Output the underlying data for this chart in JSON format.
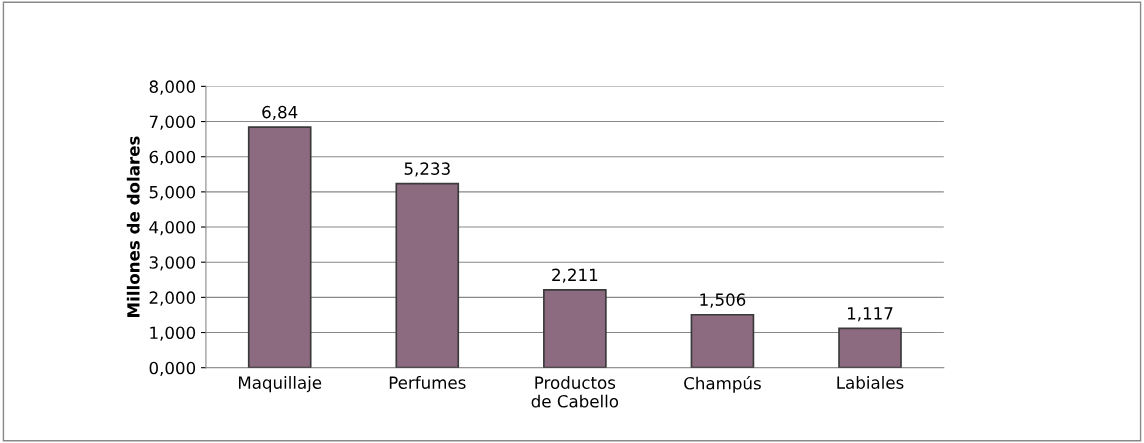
{
  "chart_data": {
    "type": "bar",
    "ylabel": "Millones de dolares",
    "categories": [
      "Maquillaje",
      "Perfumes",
      "Productos\nde Cabello",
      "Champús",
      "Labiales"
    ],
    "values": [
      6.84,
      5.233,
      2.211,
      1.506,
      1.117
    ],
    "value_labels": [
      "6,84",
      "5,233",
      "2,211",
      "1,506",
      "1,117"
    ],
    "color": "#8c6a80",
    "ylim": [
      0,
      8
    ],
    "yticks": [
      {
        "value": 0,
        "label": "0,000"
      },
      {
        "value": 1,
        "label": "1,000"
      },
      {
        "value": 2,
        "label": "2,000"
      },
      {
        "value": 3,
        "label": "3,000"
      },
      {
        "value": 4,
        "label": "4,000"
      },
      {
        "value": 5,
        "label": "5,000"
      },
      {
        "value": 6,
        "label": "6,000"
      },
      {
        "value": 7,
        "label": "7,000"
      },
      {
        "value": 8,
        "label": "8,000"
      }
    ],
    "grid": "y",
    "legend": false
  }
}
